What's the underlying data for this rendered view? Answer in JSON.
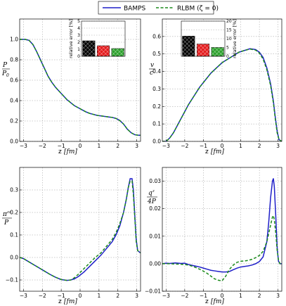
{
  "legend": {
    "items": [
      {
        "label": "BAMPS",
        "color": "#1f1fc8",
        "dash": "solid"
      },
      {
        "label": "RLBM (ζ = 0)",
        "color": "#1a8a1a",
        "dash": "dashed"
      }
    ]
  },
  "chart_data": [
    {
      "type": "line",
      "panel": "top-left",
      "ylabel": "P / P0",
      "xlabel": "z [fm]",
      "xlim": [
        -3.2,
        3.2
      ],
      "ylim": [
        0.0,
        1.2
      ],
      "xticks": [
        -3,
        -2,
        -1,
        0,
        1,
        2,
        3
      ],
      "yticks": [
        0.0,
        0.2,
        0.4,
        0.6,
        0.8,
        1.0
      ],
      "grid": true,
      "series": [
        {
          "name": "BAMPS",
          "color": "#1f1fc8",
          "dash": "solid",
          "x": [
            -3.2,
            -2.9,
            -2.7,
            -2.5,
            -2.3,
            -2.1,
            -1.9,
            -1.7,
            -1.5,
            -1.3,
            -1.1,
            -0.9,
            -0.7,
            -0.5,
            -0.3,
            -0.1,
            0.1,
            0.3,
            0.5,
            0.7,
            0.9,
            1.1,
            1.3,
            1.5,
            1.7,
            1.9,
            2.1,
            2.3,
            2.5,
            2.7,
            2.9,
            3.1,
            3.2
          ],
          "y": [
            1.0,
            1.0,
            0.99,
            0.95,
            0.88,
            0.8,
            0.72,
            0.64,
            0.58,
            0.53,
            0.49,
            0.45,
            0.41,
            0.38,
            0.35,
            0.33,
            0.31,
            0.29,
            0.275,
            0.265,
            0.255,
            0.25,
            0.245,
            0.24,
            0.235,
            0.225,
            0.205,
            0.17,
            0.12,
            0.085,
            0.065,
            0.06,
            0.06
          ]
        },
        {
          "name": "RLBM (ζ = 0)",
          "color": "#1a8a1a",
          "dash": "dashed",
          "x": [
            -3.2,
            -2.9,
            -2.7,
            -2.5,
            -2.3,
            -2.1,
            -1.9,
            -1.7,
            -1.5,
            -1.3,
            -1.1,
            -0.9,
            -0.7,
            -0.5,
            -0.3,
            -0.1,
            0.1,
            0.3,
            0.5,
            0.7,
            0.9,
            1.1,
            1.3,
            1.5,
            1.7,
            1.9,
            2.1,
            2.3,
            2.5,
            2.7,
            2.9,
            3.1,
            3.2
          ],
          "y": [
            1.0,
            1.0,
            0.99,
            0.95,
            0.88,
            0.8,
            0.72,
            0.64,
            0.58,
            0.53,
            0.49,
            0.45,
            0.41,
            0.38,
            0.35,
            0.33,
            0.31,
            0.29,
            0.275,
            0.265,
            0.255,
            0.25,
            0.245,
            0.24,
            0.235,
            0.225,
            0.205,
            0.17,
            0.12,
            0.085,
            0.065,
            0.06,
            0.06
          ]
        }
      ]
    },
    {
      "type": "line",
      "panel": "top-right",
      "ylabel": "v / c",
      "xlabel": "z [fm]",
      "xlim": [
        -3.2,
        3.2
      ],
      "ylim": [
        0.0,
        0.7
      ],
      "xticks": [
        -3,
        -2,
        -1,
        0,
        1,
        2,
        3
      ],
      "yticks": [
        0.0,
        0.1,
        0.2,
        0.3,
        0.4,
        0.5,
        0.6
      ],
      "grid": true,
      "series": [
        {
          "name": "BAMPS",
          "color": "#1f1fc8",
          "dash": "solid",
          "x": [
            -3.2,
            -3.0,
            -2.8,
            -2.6,
            -2.4,
            -2.2,
            -2.0,
            -1.8,
            -1.5,
            -1.2,
            -0.9,
            -0.6,
            -0.3,
            0.0,
            0.3,
            0.6,
            0.9,
            1.2,
            1.5,
            1.8,
            2.0,
            2.2,
            2.4,
            2.6,
            2.75,
            2.85,
            2.95,
            3.05,
            3.2
          ],
          "y": [
            0.0,
            0.0,
            0.02,
            0.05,
            0.09,
            0.13,
            0.17,
            0.21,
            0.26,
            0.31,
            0.35,
            0.39,
            0.42,
            0.45,
            0.47,
            0.49,
            0.51,
            0.52,
            0.53,
            0.525,
            0.51,
            0.48,
            0.42,
            0.33,
            0.23,
            0.14,
            0.06,
            0.01,
            0.0
          ]
        },
        {
          "name": "RLBM (ζ = 0)",
          "color": "#1a8a1a",
          "dash": "dashed",
          "x": [
            -3.2,
            -3.0,
            -2.8,
            -2.6,
            -2.4,
            -2.2,
            -2.0,
            -1.8,
            -1.5,
            -1.2,
            -0.9,
            -0.6,
            -0.3,
            0.0,
            0.3,
            0.6,
            0.9,
            1.2,
            1.5,
            1.8,
            2.0,
            2.2,
            2.4,
            2.6,
            2.75,
            2.85,
            2.95,
            3.05,
            3.2
          ],
          "y": [
            0.0,
            0.0,
            0.02,
            0.05,
            0.09,
            0.13,
            0.17,
            0.21,
            0.26,
            0.31,
            0.35,
            0.39,
            0.42,
            0.45,
            0.47,
            0.49,
            0.51,
            0.52,
            0.528,
            0.522,
            0.505,
            0.47,
            0.41,
            0.32,
            0.22,
            0.13,
            0.05,
            0.01,
            0.0
          ]
        }
      ]
    },
    {
      "type": "line",
      "panel": "bottom-left",
      "ylabel": "π^zz / P",
      "xlabel": "z [fm]",
      "xlim": [
        -3.2,
        3.2
      ],
      "ylim": [
        -0.15,
        0.4
      ],
      "xticks": [
        -3,
        -2,
        -1,
        0,
        1,
        2,
        3
      ],
      "yticks": [
        -0.1,
        0.0,
        0.1,
        0.2,
        0.3
      ],
      "grid": true,
      "series": [
        {
          "name": "BAMPS",
          "color": "#1f1fc8",
          "dash": "solid",
          "x": [
            -3.2,
            -3.0,
            -2.8,
            -2.5,
            -2.2,
            -1.9,
            -1.6,
            -1.3,
            -1.0,
            -0.7,
            -0.5,
            -0.3,
            -0.1,
            0.2,
            0.5,
            0.8,
            1.1,
            1.4,
            1.7,
            1.9,
            2.1,
            2.3,
            2.45,
            2.55,
            2.65,
            2.75,
            2.82,
            2.9,
            2.97,
            3.05,
            3.2
          ],
          "y": [
            0.0,
            -0.005,
            -0.015,
            -0.03,
            -0.045,
            -0.06,
            -0.075,
            -0.088,
            -0.098,
            -0.102,
            -0.1,
            -0.095,
            -0.085,
            -0.065,
            -0.04,
            -0.015,
            0.01,
            0.04,
            0.07,
            0.1,
            0.14,
            0.2,
            0.26,
            0.31,
            0.35,
            0.35,
            0.3,
            0.18,
            0.08,
            0.03,
            0.02
          ]
        },
        {
          "name": "RLBM (ζ = 0)",
          "color": "#1a8a1a",
          "dash": "dashed",
          "x": [
            -3.2,
            -3.0,
            -2.8,
            -2.5,
            -2.2,
            -1.9,
            -1.6,
            -1.3,
            -1.0,
            -0.7,
            -0.5,
            -0.3,
            -0.1,
            0.2,
            0.5,
            0.8,
            1.1,
            1.4,
            1.7,
            1.9,
            2.1,
            2.3,
            2.45,
            2.55,
            2.65,
            2.75,
            2.82,
            2.9,
            2.97,
            3.05,
            3.2
          ],
          "y": [
            0.0,
            -0.005,
            -0.015,
            -0.03,
            -0.045,
            -0.06,
            -0.075,
            -0.088,
            -0.098,
            -0.102,
            -0.1,
            -0.09,
            -0.075,
            -0.05,
            -0.025,
            0.0,
            0.02,
            0.05,
            0.08,
            0.11,
            0.15,
            0.2,
            0.26,
            0.31,
            0.34,
            0.34,
            0.28,
            0.17,
            0.07,
            0.03,
            0.02
          ]
        }
      ]
    },
    {
      "type": "line",
      "panel": "bottom-right",
      "ylabel": "q^z / 4P",
      "xlabel": "z [fm]",
      "xlim": [
        -3.2,
        3.2
      ],
      "ylim": [
        -0.01,
        0.035
      ],
      "xticks": [
        -3,
        -2,
        -1,
        0,
        1,
        2,
        3
      ],
      "yticks": [
        -0.01,
        0.0,
        0.01,
        0.02,
        0.03
      ],
      "grid": true,
      "series": [
        {
          "name": "BAMPS",
          "color": "#1f1fc8",
          "dash": "solid",
          "x": [
            -3.2,
            -3.0,
            -2.8,
            -2.5,
            -2.2,
            -2.0,
            -1.8,
            -1.6,
            -1.4,
            -1.2,
            -1.0,
            -0.8,
            -0.6,
            -0.4,
            -0.2,
            0.0,
            0.2,
            0.4,
            0.6,
            0.8,
            1.0,
            1.2,
            1.4,
            1.6,
            1.8,
            2.0,
            2.2,
            2.4,
            2.5,
            2.6,
            2.7,
            2.75,
            2.8,
            2.88,
            2.95,
            3.02,
            3.1,
            3.2
          ],
          "y": [
            0.0,
            0.0002,
            0.0001,
            0.0003,
            0.0001,
            0.0002,
            -0.0003,
            -0.0006,
            -0.0009,
            -0.0012,
            -0.0016,
            -0.002,
            -0.0024,
            -0.0026,
            -0.0028,
            -0.003,
            -0.003,
            -0.0028,
            -0.0022,
            -0.0016,
            -0.0012,
            -0.001,
            -0.0008,
            -0.0005,
            0.0,
            0.0008,
            0.0025,
            0.008,
            0.015,
            0.024,
            0.03,
            0.031,
            0.028,
            0.017,
            0.006,
            0.001,
            0.0,
            0.0
          ]
        },
        {
          "name": "RLBM (ζ = 0)",
          "color": "#1a8a1a",
          "dash": "dashed",
          "x": [
            -3.2,
            -3.0,
            -2.8,
            -2.5,
            -2.2,
            -2.0,
            -1.8,
            -1.6,
            -1.4,
            -1.2,
            -1.0,
            -0.8,
            -0.6,
            -0.4,
            -0.2,
            0.0,
            0.2,
            0.4,
            0.6,
            0.8,
            1.0,
            1.2,
            1.4,
            1.6,
            1.8,
            2.0,
            2.2,
            2.4,
            2.5,
            2.6,
            2.7,
            2.75,
            2.8,
            2.88,
            2.95,
            3.02,
            3.1,
            3.2
          ],
          "y": [
            0.0,
            0.0,
            0.0,
            -0.0001,
            -0.0002,
            -0.0003,
            -0.0005,
            -0.0009,
            -0.0014,
            -0.002,
            -0.0027,
            -0.0035,
            -0.0045,
            -0.0055,
            -0.006,
            -0.0062,
            -0.0045,
            -0.002,
            -0.0005,
            0.0005,
            0.0009,
            0.001,
            0.0012,
            0.0016,
            0.0022,
            0.003,
            0.0045,
            0.008,
            0.011,
            0.014,
            0.017,
            0.0175,
            0.016,
            0.011,
            0.005,
            0.0015,
            0.0,
            0.0
          ]
        }
      ]
    },
    {
      "type": "bar",
      "panel": "inset-top-left",
      "ylabel": "relative error [%]",
      "ylim": [
        0,
        5
      ],
      "yticks": [
        0,
        1,
        2,
        3,
        4,
        5
      ],
      "categories": [
        "",
        "",
        ""
      ],
      "colors": [
        "#000000",
        "#e41a1c",
        "#2ca02c"
      ],
      "values": [
        2.2,
        1.5,
        1.1
      ],
      "grid": true
    },
    {
      "type": "bar",
      "panel": "inset-top-right",
      "ylabel": "relative error [%]",
      "ylim": [
        0,
        20
      ],
      "yticks": [
        0,
        5,
        10,
        15,
        20
      ],
      "categories": [
        "",
        "",
        ""
      ],
      "colors": [
        "#000000",
        "#e41a1c",
        "#2ca02c"
      ],
      "values": [
        11.5,
        7.0,
        5.0
      ],
      "grid": true
    }
  ]
}
